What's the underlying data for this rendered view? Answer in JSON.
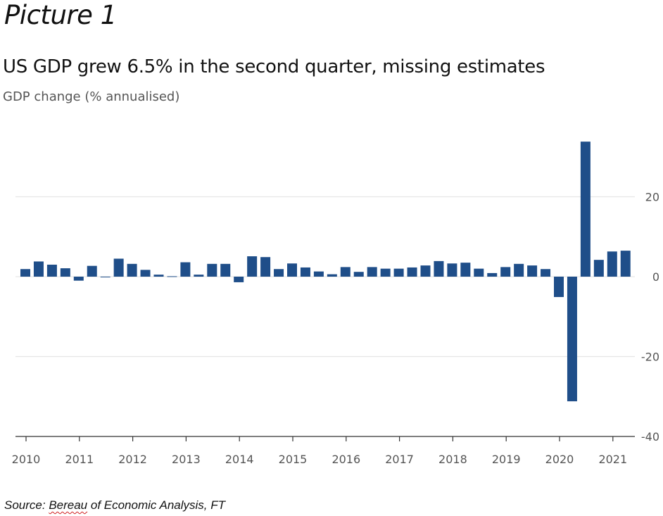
{
  "picture_label": "Picture 1",
  "source": {
    "prefix": "Source: ",
    "squiggle": "Bereau",
    "suffix": " of Economic Analysis, FT"
  },
  "colors": {
    "bar": "#1f4e89",
    "grid": "#e6e6e6",
    "axis": "#333333",
    "text": "#555555"
  },
  "chart_data": {
    "type": "bar",
    "title": "US GDP grew 6.5% in the second quarter, missing estimates",
    "subtitle": "GDP change (% annualised)",
    "ylim": [
      -40,
      35
    ],
    "yticks": [
      20,
      0,
      -20,
      -40
    ],
    "ytick_labels": [
      "20",
      "0",
      "-20",
      "-40"
    ],
    "xtick_labels": [
      "2010",
      "2011",
      "2012",
      "2013",
      "2014",
      "2015",
      "2016",
      "2017",
      "2018",
      "2019",
      "2020",
      "2021"
    ],
    "grid": true,
    "y_axis_side": "right",
    "series": [
      {
        "x": [
          "2010-Q1",
          "2010-Q2",
          "2010-Q3",
          "2010-Q4",
          "2011-Q1",
          "2011-Q2",
          "2011-Q3",
          "2011-Q4",
          "2012-Q1",
          "2012-Q2",
          "2012-Q3",
          "2012-Q4",
          "2013-Q1",
          "2013-Q2",
          "2013-Q3",
          "2013-Q4",
          "2014-Q1",
          "2014-Q2",
          "2014-Q3",
          "2014-Q4",
          "2015-Q1",
          "2015-Q2",
          "2015-Q3",
          "2015-Q4",
          "2016-Q1",
          "2016-Q2",
          "2016-Q3",
          "2016-Q4",
          "2017-Q1",
          "2017-Q2",
          "2017-Q3",
          "2017-Q4",
          "2018-Q1",
          "2018-Q2",
          "2018-Q3",
          "2018-Q4",
          "2019-Q1",
          "2019-Q2",
          "2019-Q3",
          "2019-Q4",
          "2020-Q1",
          "2020-Q2",
          "2020-Q3",
          "2020-Q4",
          "2021-Q1",
          "2021-Q2"
        ],
        "values": [
          1.9,
          3.8,
          3.0,
          2.1,
          -1.0,
          2.7,
          -0.1,
          4.5,
          3.2,
          1.7,
          0.5,
          0.1,
          3.6,
          0.5,
          3.2,
          3.2,
          -1.4,
          5.1,
          4.9,
          1.9,
          3.3,
          2.3,
          1.3,
          0.6,
          2.4,
          1.2,
          2.4,
          2.0,
          2.0,
          2.3,
          2.8,
          3.9,
          3.3,
          3.5,
          2.0,
          0.9,
          2.4,
          3.2,
          2.8,
          1.9,
          -5.1,
          -31.2,
          33.8,
          4.2,
          6.3,
          6.5
        ]
      }
    ]
  }
}
